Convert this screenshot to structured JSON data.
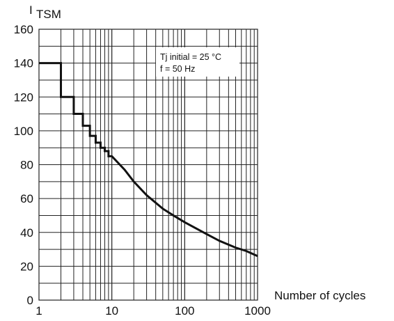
{
  "chart_data": {
    "type": "line",
    "ylabel_prefix": "I",
    "ylabel_sub": "TSM",
    "xlabel": "Number of cycles",
    "x_scale": "log",
    "xlim": [
      1,
      1000
    ],
    "ylim": [
      0,
      160
    ],
    "x_ticks": [
      1,
      10,
      100,
      1000
    ],
    "x_tick_labels": [
      "1",
      "10",
      "100",
      "1000"
    ],
    "y_ticks": [
      0,
      20,
      40,
      60,
      80,
      100,
      120,
      140,
      160
    ],
    "y_tick_labels": [
      "0",
      "20",
      "40",
      "60",
      "80",
      "100",
      "120",
      "140",
      "160"
    ],
    "grid": true,
    "annotation": [
      "Tj initial = 25 °C",
      "f =  50 Hz"
    ],
    "series": [
      {
        "x": [
          1,
          2,
          2,
          3,
          3,
          4,
          4,
          5,
          5,
          6,
          6,
          7,
          7,
          8,
          8,
          9,
          9,
          10,
          15,
          20,
          30,
          50,
          70,
          100,
          200,
          300,
          500,
          700,
          1000
        ],
        "values": [
          140,
          140,
          120,
          120,
          110,
          110,
          103,
          103,
          97,
          97,
          93,
          93,
          90,
          90,
          88,
          88,
          85,
          85,
          77,
          70,
          62,
          54,
          50,
          46,
          39,
          35,
          31,
          29,
          26
        ]
      }
    ]
  }
}
